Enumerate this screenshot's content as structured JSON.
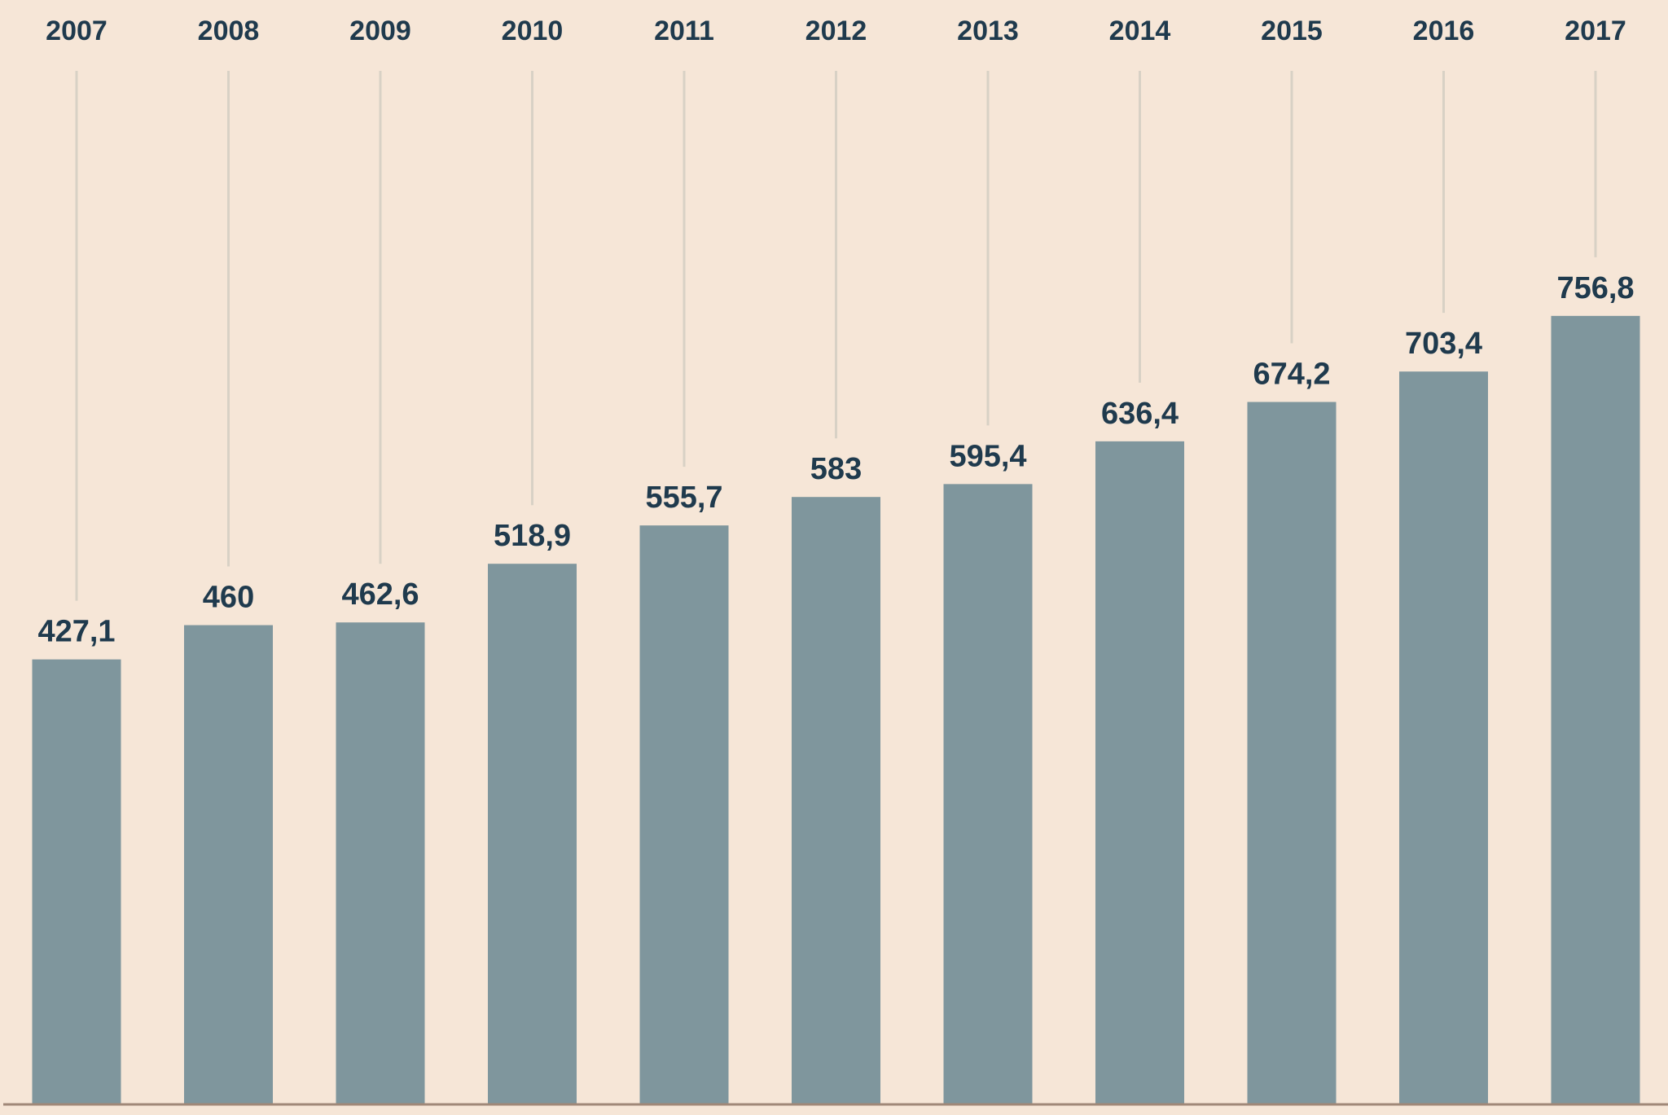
{
  "chart_data": {
    "type": "bar",
    "categories": [
      "2007",
      "2008",
      "2009",
      "2010",
      "2011",
      "2012",
      "2013",
      "2014",
      "2015",
      "2016",
      "2017"
    ],
    "values": [
      427.1,
      460,
      462.6,
      518.9,
      555.7,
      583,
      595.4,
      636.4,
      674.2,
      703.4,
      756.8
    ],
    "value_labels": [
      "427,1",
      "460",
      "462,6",
      "518,9",
      "555,7",
      "583",
      "595,4",
      "636,4",
      "674,2",
      "703,4",
      "756,8"
    ],
    "title": "",
    "xlabel": "",
    "ylabel": "",
    "ylim": [
      0,
      1060
    ],
    "grid": false,
    "legend": "none"
  },
  "colors": {
    "background": "#f6e6d7",
    "bar": "#7f969d",
    "text": "#1f3a4d",
    "guide": "#d8d1c5",
    "axis": "#a08878"
  }
}
